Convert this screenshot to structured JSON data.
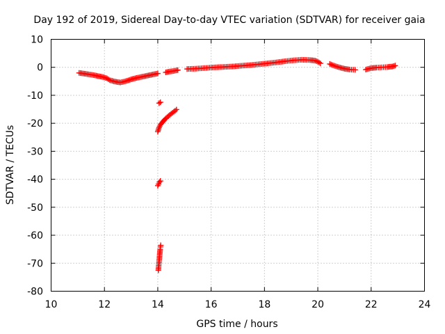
{
  "chart_data": {
    "type": "scatter",
    "title": "Day 192 of 2019, Sidereal Day-to-day VTEC variation (SDTVAR) for receiver gaia",
    "xlabel": "GPS time / hours",
    "ylabel": "SDTVAR / TECUs",
    "xlim": [
      10,
      24
    ],
    "ylim": [
      -80,
      10
    ],
    "xticks": [
      10,
      12,
      14,
      16,
      18,
      20,
      22,
      24
    ],
    "yticks": [
      10,
      0,
      -10,
      -20,
      -30,
      -40,
      -50,
      -60,
      -70,
      -80
    ],
    "xtick_labels": [
      "10",
      "12",
      "14",
      "16",
      "18",
      "20",
      "22",
      "24"
    ],
    "ytick_labels": [
      "10",
      "0",
      "-10",
      "-20",
      "-30",
      "-40",
      "-50",
      "-60",
      "-70",
      "-80"
    ],
    "grid": true,
    "marker": "plus",
    "color": "#ff0000",
    "series": [
      {
        "name": "main",
        "x": [
          11.05,
          11.2,
          11.4,
          11.6,
          11.8,
          12.0,
          12.1,
          12.2,
          12.35,
          12.5,
          12.6,
          12.7,
          12.85,
          13.0,
          13.2,
          13.4,
          13.6,
          13.8,
          13.95,
          14.0
        ],
        "y": [
          -2.0,
          -2.2,
          -2.5,
          -2.8,
          -3.2,
          -3.6,
          -4.0,
          -4.6,
          -5.0,
          -5.3,
          -5.4,
          -5.2,
          -4.8,
          -4.3,
          -3.8,
          -3.4,
          -3.0,
          -2.6,
          -2.3,
          -2.2
        ]
      },
      {
        "name": "seg2",
        "x": [
          14.3,
          14.45,
          14.6,
          14.75
        ],
        "y": [
          -1.8,
          -1.5,
          -1.3,
          -1.0
        ]
      },
      {
        "name": "seg3",
        "x": [
          15.1,
          15.4,
          15.7,
          16.0,
          16.4,
          16.8,
          17.2,
          17.6,
          18.0,
          18.4,
          18.8,
          19.1,
          19.4,
          19.7,
          19.9,
          20.0,
          20.1
        ],
        "y": [
          -0.6,
          -0.5,
          -0.3,
          -0.1,
          0.1,
          0.3,
          0.6,
          0.9,
          1.3,
          1.7,
          2.2,
          2.5,
          2.7,
          2.6,
          2.4,
          2.0,
          1.4
        ]
      },
      {
        "name": "seg4",
        "x": [
          20.45,
          20.6,
          20.8,
          21.0,
          21.2,
          21.4
        ],
        "y": [
          1.2,
          0.6,
          0.0,
          -0.5,
          -0.8,
          -0.9
        ]
      },
      {
        "name": "seg5",
        "x": [
          21.8,
          22.0,
          22.2,
          22.4,
          22.6,
          22.8,
          22.9
        ],
        "y": [
          -0.8,
          -0.3,
          -0.1,
          0.0,
          0.1,
          0.3,
          0.6
        ]
      },
      {
        "name": "arc",
        "x": [
          14.0,
          14.05,
          14.1,
          14.2,
          14.3,
          14.4,
          14.5,
          14.6,
          14.7
        ],
        "y": [
          -23.0,
          -21.5,
          -20.5,
          -19.3,
          -18.3,
          -17.4,
          -16.6,
          -15.9,
          -15.1
        ]
      },
      {
        "name": "isolated",
        "x": [
          14.05,
          14.1
        ],
        "y": [
          -12.8,
          -12.5
        ]
      },
      {
        "name": "cluster40",
        "x": [
          14.0,
          14.03,
          14.06,
          14.1
        ],
        "y": [
          -42.3,
          -41.7,
          -41.0,
          -40.6
        ]
      },
      {
        "name": "low",
        "x": [
          14.02,
          14.03,
          14.04,
          14.05,
          14.06,
          14.07,
          14.08,
          14.09,
          14.1,
          14.11
        ],
        "y": [
          -72.5,
          -71.4,
          -70.3,
          -69.2,
          -68.1,
          -67.0,
          -66.0,
          -65.0,
          -64.2,
          -63.6
        ]
      }
    ]
  }
}
